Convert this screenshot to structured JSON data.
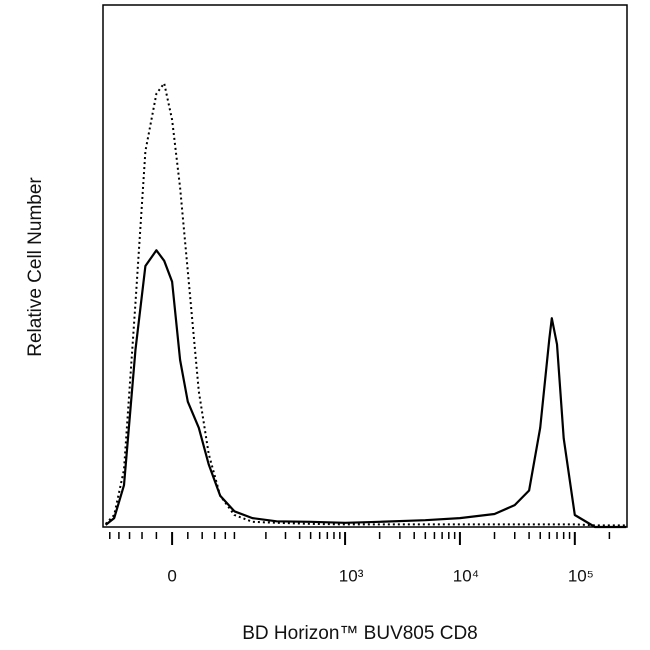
{
  "chart_data": {
    "type": "line",
    "x_label": "BD Horizon™ BUV805 CD8",
    "y_label": "Relative Cell Number",
    "xscale": {
      "type": "asinh",
      "cofactor": 62.5
    },
    "xlim": [
      -117,
      284600
    ],
    "ylim": [
      0,
      100
    ],
    "xticks": [
      0,
      {
        "value": 1000,
        "label": "10³"
      },
      {
        "value": 10000,
        "label": "10⁴"
      },
      {
        "value": 100000,
        "label": "10⁵"
      }
    ],
    "xminorticks": [
      -100,
      -80,
      -60,
      -40,
      -20,
      20,
      40,
      60,
      80,
      100,
      200,
      300,
      400,
      500,
      600,
      700,
      800,
      900,
      2000,
      3000,
      4000,
      5000,
      6000,
      7000,
      8000,
      9000,
      20000,
      30000,
      40000,
      50000,
      60000,
      70000,
      80000,
      90000,
      200000
    ],
    "x": [
      -110,
      -90,
      -70,
      -50,
      -35,
      -20,
      -10,
      0,
      10,
      20,
      35,
      50,
      70,
      100,
      150,
      250,
      500,
      1000,
      2000,
      5000,
      10000,
      20000,
      30000,
      40000,
      50000,
      60000,
      63000,
      70000,
      80000,
      100000,
      150000,
      280000
    ],
    "series": [
      {
        "color": "#000000",
        "style": "solid",
        "values": [
          0.4,
          1.7,
          8,
          34,
          50,
          53,
          51,
          47,
          32,
          24,
          19,
          12,
          6,
          3,
          1.7,
          1.1,
          1,
          0.8,
          1,
          1.3,
          1.7,
          2.5,
          4.2,
          7,
          19,
          36,
          40,
          35,
          17,
          2.3,
          0,
          0
        ]
      },
      {
        "color": "#000000",
        "style": "dotted",
        "values": [
          0.6,
          2.3,
          11,
          43,
          72,
          83,
          85,
          78,
          65,
          49,
          26,
          14,
          6,
          2.3,
          1,
          0.8,
          0.6,
          0.5,
          0.5,
          0.5,
          0.5,
          0.5,
          0.5,
          0.5,
          0.5,
          0.5,
          0.5,
          0.5,
          0.5,
          0.5,
          0.3,
          0.3
        ]
      }
    ]
  }
}
